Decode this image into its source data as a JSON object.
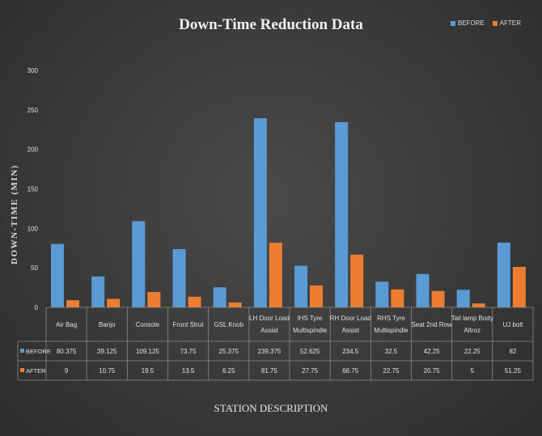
{
  "chart_data": {
    "type": "bar",
    "title": "Down-Time Reduction Data",
    "xlabel": "STATION DESCRIPTION",
    "ylabel": "DOWN-TIME   (MIN)",
    "ylim": [
      0,
      300
    ],
    "yticks": [
      0,
      50,
      100,
      150,
      200,
      250,
      300
    ],
    "legend_position": "top-right",
    "grid": false,
    "categories": [
      [
        "Air Bag"
      ],
      [
        "Banjo"
      ],
      [
        "Console"
      ],
      [
        "Front Strut"
      ],
      [
        "GSL Knob"
      ],
      [
        "LH Door Load",
        "Assist"
      ],
      [
        "lHS Tyre",
        "Multispindle"
      ],
      [
        "RH Door Load",
        "Assist"
      ],
      [
        "RHS Tyre",
        "Multispindle"
      ],
      [
        "Seat 2nd Row"
      ],
      [
        "Tail lamp Body",
        "Altroz"
      ],
      [
        "UJ bolt"
      ]
    ],
    "series": [
      {
        "name": "BEFORE",
        "color": "#5b9bd5",
        "values": [
          80.375,
          39.125,
          109.125,
          73.75,
          25.375,
          239.375,
          52.625,
          234.5,
          32.5,
          42.25,
          22.25,
          82
        ],
        "labels": [
          "80.375",
          "39.125",
          "109.125",
          "73.75",
          "25.375",
          "239.375",
          "52.625",
          "234.5",
          "32.5",
          "42.25",
          "22.25",
          "82"
        ]
      },
      {
        "name": "AFTER",
        "color": "#ed7d31",
        "values": [
          9,
          10.75,
          19.5,
          13.5,
          6.25,
          81.75,
          27.75,
          66.75,
          22.75,
          20.75,
          5,
          51.25
        ],
        "labels": [
          "9",
          "10.75",
          "19.5",
          "13.5",
          "6.25",
          "81.75",
          "27.75",
          "66.75",
          "22.75",
          "20.75",
          "5",
          "51.25"
        ]
      }
    ]
  }
}
